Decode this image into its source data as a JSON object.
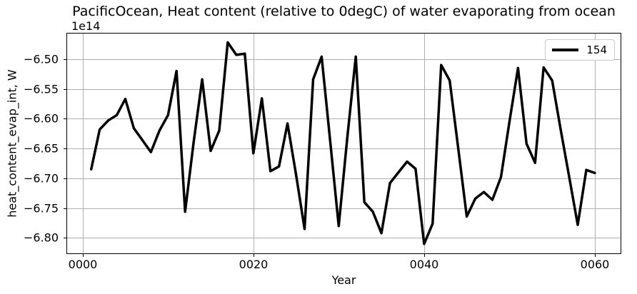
{
  "title": "PacificOcean, Heat content (relative to 0degC) of water evaporating from ocean",
  "axes": {
    "xlabel": "Year",
    "ylabel": "heat_content_evap_int, W",
    "offset_label": "1e14"
  },
  "legend": {
    "label": "154"
  },
  "colors": {
    "line": "#000000",
    "grid": "#b0b0b0",
    "spine": "#000000",
    "background": "#ffffff",
    "legend_border": "#cccccc"
  },
  "chart_data": {
    "type": "line",
    "title": "PacificOcean, Heat content (relative to 0degC) of water evaporating from ocean",
    "xlabel": "Year",
    "ylabel": "heat_content_evap_int, W",
    "y_unit_offset": "1e14",
    "grid": true,
    "legend_position": "upper right",
    "xlim": [
      -1.9,
      63.1
    ],
    "ylim": [
      -6.827,
      -6.456
    ],
    "xticks": {
      "values": [
        0,
        20,
        40,
        60
      ],
      "labels": [
        "0000",
        "0020",
        "0040",
        "0060"
      ]
    },
    "yticks": {
      "values": [
        -6.5,
        -6.55,
        -6.6,
        -6.65,
        -6.7,
        -6.75,
        -6.8
      ],
      "labels": [
        "−6.50",
        "−6.55",
        "−6.60",
        "−6.65",
        "−6.70",
        "−6.75",
        "−6.80"
      ]
    },
    "series": [
      {
        "name": "154",
        "color": "#000000",
        "linewidth": 3.5,
        "x": [
          1,
          2,
          3,
          4,
          5,
          6,
          7,
          8,
          9,
          10,
          11,
          12,
          13,
          14,
          15,
          16,
          17,
          18,
          19,
          20,
          21,
          22,
          23,
          24,
          25,
          26,
          27,
          28,
          29,
          30,
          31,
          32,
          33,
          34,
          35,
          36,
          37,
          38,
          39,
          40,
          41,
          42,
          43,
          44,
          45,
          46,
          47,
          48,
          49,
          50,
          51,
          52,
          53,
          54,
          55,
          56,
          57,
          58,
          59,
          60
        ],
        "y": [
          -6.685,
          -6.618,
          -6.603,
          -6.594,
          -6.567,
          -6.616,
          -6.636,
          -6.656,
          -6.62,
          -6.594,
          -6.52,
          -6.756,
          -6.64,
          -6.534,
          -6.654,
          -6.62,
          -6.472,
          -6.493,
          -6.491,
          -6.658,
          -6.566,
          -6.688,
          -6.68,
          -6.608,
          -6.694,
          -6.785,
          -6.534,
          -6.496,
          -6.638,
          -6.78,
          -6.632,
          -6.496,
          -6.74,
          -6.756,
          -6.792,
          -6.708,
          -6.69,
          -6.672,
          -6.684,
          -6.81,
          -6.776,
          -6.51,
          -6.536,
          -6.65,
          -6.764,
          -6.734,
          -6.723,
          -6.736,
          -6.698,
          -6.605,
          -6.515,
          -6.642,
          -6.674,
          -6.514,
          -6.536,
          -6.618,
          -6.698,
          -6.778,
          -6.686,
          -6.691
        ]
      }
    ]
  }
}
